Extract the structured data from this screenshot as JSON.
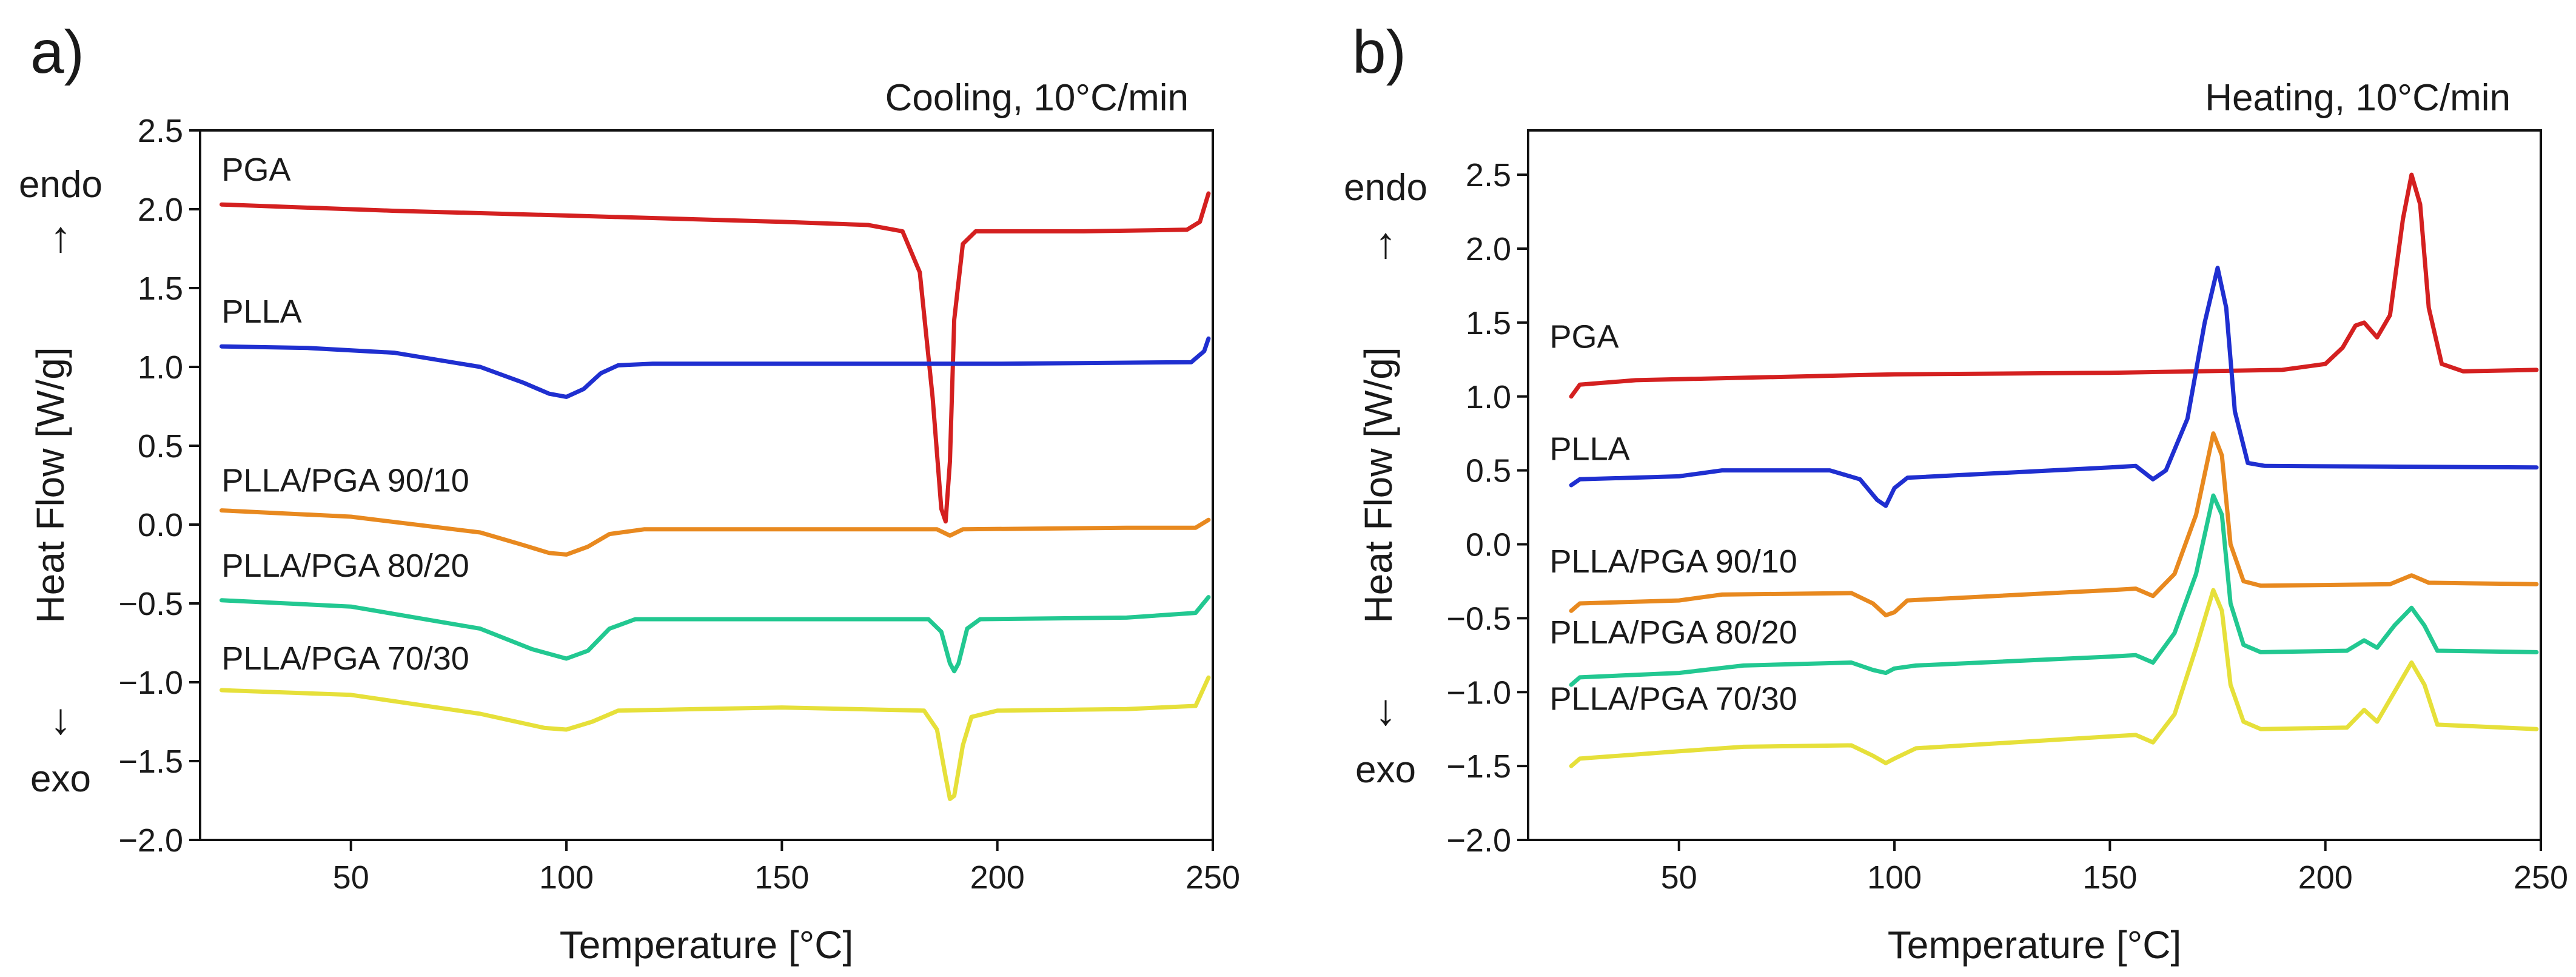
{
  "colors": {
    "PGA": "#d42020",
    "PLLA": "#1f2fd0",
    "PLLA/PGA 90/10": "#e8891f",
    "PLLA/PGA 80/20": "#22c891",
    "PLLA/PGA 70/30": "#e6e03a"
  },
  "chart_data": [
    {
      "panel": "a)",
      "type": "line",
      "condition": "Cooling, 10°C/min",
      "xlabel": "Temperature [°C]",
      "ylabel": "Heat Flow [W/g]",
      "endo_label": "endo",
      "exo_label": "exo",
      "arrow_up": "↑",
      "arrow_down": "↓",
      "xlim": [
        15,
        250
      ],
      "ylim": [
        -2.0,
        2.5
      ],
      "xticks": [
        50,
        100,
        150,
        200,
        250
      ],
      "yticks": [
        -2.0,
        -1.5,
        -1.0,
        -0.5,
        0.0,
        0.5,
        1.0,
        1.5,
        2.0,
        2.5
      ],
      "series": [
        {
          "name": "PGA",
          "label_at": [
            20,
            2.18
          ],
          "points": [
            [
              20,
              2.03
            ],
            [
              60,
              1.99
            ],
            [
              100,
              1.96
            ],
            [
              150,
              1.92
            ],
            [
              170,
              1.9
            ],
            [
              178,
              1.86
            ],
            [
              182,
              1.6
            ],
            [
              185,
              0.8
            ],
            [
              187,
              0.1
            ],
            [
              188,
              0.02
            ],
            [
              189,
              0.4
            ],
            [
              190,
              1.3
            ],
            [
              192,
              1.78
            ],
            [
              195,
              1.86
            ],
            [
              220,
              1.86
            ],
            [
              244,
              1.87
            ],
            [
              247,
              1.92
            ],
            [
              249,
              2.1
            ]
          ]
        },
        {
          "name": "PLLA",
          "label_at": [
            20,
            1.28
          ],
          "points": [
            [
              20,
              1.13
            ],
            [
              40,
              1.12
            ],
            [
              60,
              1.09
            ],
            [
              80,
              1.0
            ],
            [
              90,
              0.9
            ],
            [
              96,
              0.83
            ],
            [
              100,
              0.81
            ],
            [
              104,
              0.86
            ],
            [
              108,
              0.96
            ],
            [
              112,
              1.01
            ],
            [
              120,
              1.02
            ],
            [
              160,
              1.02
            ],
            [
              200,
              1.02
            ],
            [
              245,
              1.03
            ],
            [
              248,
              1.1
            ],
            [
              249,
              1.18
            ]
          ]
        },
        {
          "name": "PLLA/PGA 90/10",
          "label_at": [
            20,
            0.21
          ],
          "points": [
            [
              20,
              0.09
            ],
            [
              50,
              0.05
            ],
            [
              80,
              -0.05
            ],
            [
              90,
              -0.13
            ],
            [
              96,
              -0.18
            ],
            [
              100,
              -0.19
            ],
            [
              105,
              -0.14
            ],
            [
              110,
              -0.06
            ],
            [
              118,
              -0.03
            ],
            [
              150,
              -0.03
            ],
            [
              186,
              -0.03
            ],
            [
              189,
              -0.07
            ],
            [
              192,
              -0.03
            ],
            [
              230,
              -0.02
            ],
            [
              246,
              -0.02
            ],
            [
              249,
              0.03
            ]
          ]
        },
        {
          "name": "PLLA/PGA 80/20",
          "label_at": [
            20,
            -0.33
          ],
          "points": [
            [
              20,
              -0.48
            ],
            [
              50,
              -0.52
            ],
            [
              80,
              -0.66
            ],
            [
              92,
              -0.79
            ],
            [
              100,
              -0.85
            ],
            [
              105,
              -0.8
            ],
            [
              110,
              -0.66
            ],
            [
              116,
              -0.6
            ],
            [
              150,
              -0.6
            ],
            [
              184,
              -0.6
            ],
            [
              187,
              -0.68
            ],
            [
              189,
              -0.88
            ],
            [
              190,
              -0.93
            ],
            [
              191,
              -0.88
            ],
            [
              193,
              -0.66
            ],
            [
              196,
              -0.6
            ],
            [
              230,
              -0.59
            ],
            [
              246,
              -0.56
            ],
            [
              249,
              -0.46
            ]
          ]
        },
        {
          "name": "PLLA/PGA 70/30",
          "label_at": [
            20,
            -0.92
          ],
          "points": [
            [
              20,
              -1.05
            ],
            [
              50,
              -1.08
            ],
            [
              80,
              -1.2
            ],
            [
              95,
              -1.29
            ],
            [
              100,
              -1.3
            ],
            [
              106,
              -1.25
            ],
            [
              112,
              -1.18
            ],
            [
              150,
              -1.16
            ],
            [
              183,
              -1.18
            ],
            [
              186,
              -1.3
            ],
            [
              188,
              -1.6
            ],
            [
              189,
              -1.74
            ],
            [
              190,
              -1.72
            ],
            [
              192,
              -1.4
            ],
            [
              194,
              -1.22
            ],
            [
              200,
              -1.18
            ],
            [
              230,
              -1.17
            ],
            [
              246,
              -1.15
            ],
            [
              249,
              -0.97
            ]
          ]
        }
      ]
    },
    {
      "panel": "b)",
      "type": "line",
      "condition": "Heating, 10°C/min",
      "xlabel": "Temperature [°C]",
      "ylabel": "Heat Flow [W/g]",
      "endo_label": "endo",
      "exo_label": "exo",
      "arrow_up": "↑",
      "arrow_down": "↓",
      "xlim": [
        15,
        250
      ],
      "ylim": [
        -2.0,
        2.8
      ],
      "xticks": [
        50,
        100,
        150,
        200,
        250
      ],
      "yticks": [
        -2.0,
        -1.5,
        -1.0,
        -0.5,
        0.0,
        0.5,
        1.0,
        1.5,
        2.0,
        2.5
      ],
      "series": [
        {
          "name": "PGA",
          "label_at": [
            20,
            1.33
          ],
          "points": [
            [
              25,
              1.0
            ],
            [
              27,
              1.08
            ],
            [
              40,
              1.11
            ],
            [
              100,
              1.15
            ],
            [
              150,
              1.16
            ],
            [
              190,
              1.18
            ],
            [
              200,
              1.22
            ],
            [
              204,
              1.33
            ],
            [
              207,
              1.48
            ],
            [
              209,
              1.5
            ],
            [
              212,
              1.4
            ],
            [
              215,
              1.55
            ],
            [
              218,
              2.2
            ],
            [
              220,
              2.5
            ],
            [
              222,
              2.3
            ],
            [
              224,
              1.6
            ],
            [
              227,
              1.22
            ],
            [
              232,
              1.17
            ],
            [
              249,
              1.18
            ]
          ]
        },
        {
          "name": "PLLA",
          "label_at": [
            20,
            0.57
          ],
          "points": [
            [
              25,
              0.4
            ],
            [
              27,
              0.44
            ],
            [
              50,
              0.46
            ],
            [
              60,
              0.5
            ],
            [
              85,
              0.5
            ],
            [
              92,
              0.44
            ],
            [
              96,
              0.3
            ],
            [
              98,
              0.26
            ],
            [
              100,
              0.38
            ],
            [
              103,
              0.45
            ],
            [
              150,
              0.52
            ],
            [
              156,
              0.53
            ],
            [
              160,
              0.44
            ],
            [
              163,
              0.5
            ],
            [
              168,
              0.85
            ],
            [
              172,
              1.5
            ],
            [
              175,
              1.87
            ],
            [
              177,
              1.6
            ],
            [
              179,
              0.9
            ],
            [
              182,
              0.55
            ],
            [
              186,
              0.53
            ],
            [
              249,
              0.52
            ]
          ]
        },
        {
          "name": "PLLA/PGA 90/10",
          "label_at": [
            20,
            -0.19
          ],
          "points": [
            [
              25,
              -0.45
            ],
            [
              27,
              -0.4
            ],
            [
              50,
              -0.38
            ],
            [
              60,
              -0.34
            ],
            [
              90,
              -0.33
            ],
            [
              95,
              -0.4
            ],
            [
              98,
              -0.48
            ],
            [
              100,
              -0.46
            ],
            [
              103,
              -0.38
            ],
            [
              150,
              -0.31
            ],
            [
              156,
              -0.3
            ],
            [
              160,
              -0.35
            ],
            [
              165,
              -0.2
            ],
            [
              170,
              0.2
            ],
            [
              174,
              0.75
            ],
            [
              176,
              0.6
            ],
            [
              178,
              0.0
            ],
            [
              181,
              -0.25
            ],
            [
              185,
              -0.28
            ],
            [
              215,
              -0.27
            ],
            [
              220,
              -0.21
            ],
            [
              224,
              -0.26
            ],
            [
              249,
              -0.27
            ]
          ]
        },
        {
          "name": "PLLA/PGA 80/20",
          "label_at": [
            20,
            -0.67
          ],
          "points": [
            [
              25,
              -0.95
            ],
            [
              27,
              -0.9
            ],
            [
              50,
              -0.87
            ],
            [
              65,
              -0.82
            ],
            [
              90,
              -0.8
            ],
            [
              95,
              -0.85
            ],
            [
              98,
              -0.87
            ],
            [
              100,
              -0.84
            ],
            [
              105,
              -0.82
            ],
            [
              150,
              -0.76
            ],
            [
              156,
              -0.75
            ],
            [
              160,
              -0.8
            ],
            [
              165,
              -0.6
            ],
            [
              170,
              -0.2
            ],
            [
              174,
              0.33
            ],
            [
              176,
              0.2
            ],
            [
              178,
              -0.4
            ],
            [
              181,
              -0.68
            ],
            [
              185,
              -0.73
            ],
            [
              205,
              -0.72
            ],
            [
              209,
              -0.65
            ],
            [
              212,
              -0.7
            ],
            [
              216,
              -0.55
            ],
            [
              220,
              -0.43
            ],
            [
              223,
              -0.55
            ],
            [
              226,
              -0.72
            ],
            [
              249,
              -0.73
            ]
          ]
        },
        {
          "name": "PLLA/PGA 70/30",
          "label_at": [
            20,
            -1.12
          ],
          "points": [
            [
              25,
              -1.5
            ],
            [
              27,
              -1.45
            ],
            [
              50,
              -1.4
            ],
            [
              65,
              -1.37
            ],
            [
              90,
              -1.36
            ],
            [
              95,
              -1.43
            ],
            [
              98,
              -1.48
            ],
            [
              100,
              -1.45
            ],
            [
              105,
              -1.38
            ],
            [
              150,
              -1.3
            ],
            [
              156,
              -1.29
            ],
            [
              160,
              -1.34
            ],
            [
              165,
              -1.15
            ],
            [
              170,
              -0.7
            ],
            [
              174,
              -0.31
            ],
            [
              176,
              -0.45
            ],
            [
              178,
              -0.95
            ],
            [
              181,
              -1.2
            ],
            [
              185,
              -1.25
            ],
            [
              205,
              -1.24
            ],
            [
              209,
              -1.12
            ],
            [
              212,
              -1.2
            ],
            [
              216,
              -1.0
            ],
            [
              220,
              -0.8
            ],
            [
              223,
              -0.95
            ],
            [
              226,
              -1.22
            ],
            [
              249,
              -1.25
            ]
          ]
        }
      ]
    }
  ]
}
